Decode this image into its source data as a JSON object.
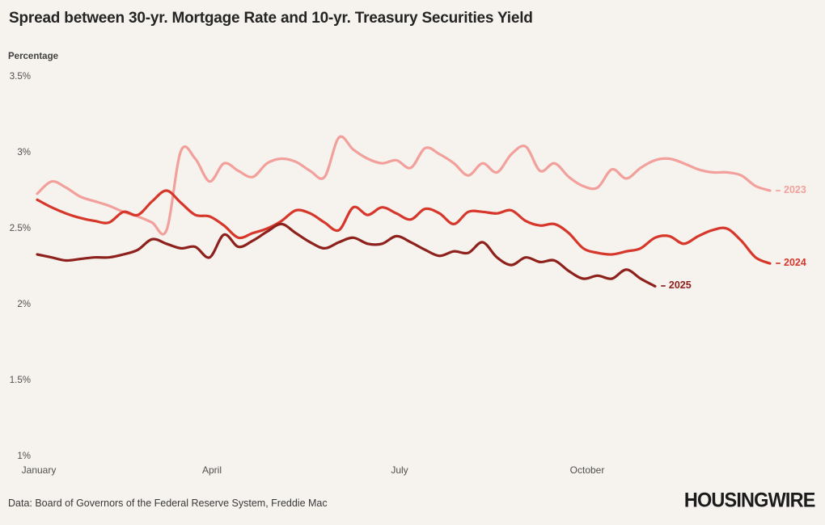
{
  "title": "Spread between 30-yr. Mortgage Rate and 10-yr. Treasury Securities Yield",
  "y_axis_unit": "Percentage",
  "footer": {
    "source": "Data: Board of Governors of the Federal Reserve System, Freddie Mac",
    "brand": "HOUSINGWIRE"
  },
  "colors": {
    "background": "#f6f3ee",
    "series_2023": "#f2a09c",
    "series_2024": "#d6372a",
    "series_2025": "#8e211c",
    "text": "#242424"
  },
  "chart_data": {
    "type": "line",
    "title": "Spread between 30-yr. Mortgage Rate and 10-yr. Treasury Securities Yield",
    "ylabel": "Percentage",
    "xlabel": "",
    "x_unit": "week of year",
    "ylim": [
      1,
      3.5
    ],
    "grid": false,
    "legend_position": "line-end-right",
    "y_ticks": [
      {
        "label": "3.5%",
        "value": 3.5
      },
      {
        "label": "3%",
        "value": 3.0
      },
      {
        "label": "2.5%",
        "value": 2.5
      },
      {
        "label": "2%",
        "value": 2.0
      },
      {
        "label": "1.5%",
        "value": 1.5
      },
      {
        "label": "1%",
        "value": 1.0
      }
    ],
    "x_ticks": [
      {
        "label": "January"
      },
      {
        "label": "April"
      },
      {
        "label": "July"
      },
      {
        "label": "October"
      }
    ],
    "series": [
      {
        "name": "2023",
        "color": "#f2a09c",
        "values": [
          2.73,
          2.81,
          2.77,
          2.71,
          2.68,
          2.65,
          2.61,
          2.58,
          2.54,
          2.49,
          3.01,
          2.96,
          2.81,
          2.93,
          2.88,
          2.84,
          2.93,
          2.96,
          2.94,
          2.88,
          2.84,
          3.1,
          3.02,
          2.96,
          2.93,
          2.95,
          2.9,
          3.03,
          2.99,
          2.93,
          2.85,
          2.93,
          2.87,
          2.99,
          3.04,
          2.88,
          2.93,
          2.84,
          2.78,
          2.77,
          2.89,
          2.83,
          2.9,
          2.95,
          2.96,
          2.93,
          2.89,
          2.87,
          2.87,
          2.85,
          2.78,
          2.75
        ]
      },
      {
        "name": "2024",
        "color": "#d6372a",
        "values": [
          2.69,
          2.64,
          2.6,
          2.57,
          2.55,
          2.54,
          2.61,
          2.59,
          2.68,
          2.75,
          2.67,
          2.59,
          2.58,
          2.52,
          2.44,
          2.47,
          2.5,
          2.55,
          2.62,
          2.6,
          2.54,
          2.49,
          2.64,
          2.59,
          2.64,
          2.6,
          2.56,
          2.63,
          2.6,
          2.53,
          2.61,
          2.61,
          2.6,
          2.62,
          2.55,
          2.52,
          2.53,
          2.47,
          2.37,
          2.34,
          2.33,
          2.35,
          2.37,
          2.44,
          2.45,
          2.4,
          2.45,
          2.49,
          2.5,
          2.42,
          2.31,
          2.27
        ]
      },
      {
        "name": "2025",
        "color": "#8e211c",
        "values": [
          2.33,
          2.31,
          2.29,
          2.3,
          2.31,
          2.31,
          2.33,
          2.36,
          2.43,
          2.4,
          2.37,
          2.38,
          2.31,
          2.46,
          2.38,
          2.42,
          2.48,
          2.53,
          2.47,
          2.41,
          2.37,
          2.41,
          2.44,
          2.4,
          2.4,
          2.45,
          2.41,
          2.36,
          2.32,
          2.35,
          2.34,
          2.41,
          2.31,
          2.26,
          2.31,
          2.28,
          2.29,
          2.22,
          2.17,
          2.19,
          2.17,
          2.23,
          2.17,
          2.12
        ]
      }
    ]
  }
}
